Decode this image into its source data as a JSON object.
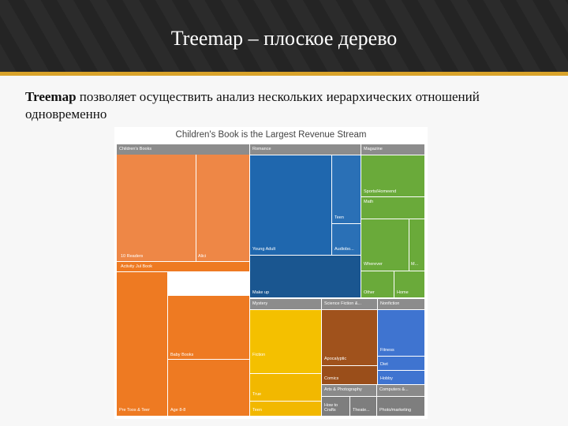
{
  "slide": {
    "title": "Treemap – плоское дерево",
    "text_bold": "Treemap",
    "text_rest": " позволяет осуществить анализ нескольких иерархических отношений одновременно"
  },
  "chart_data": {
    "type": "treemap",
    "title": "Children's Book is the Largest Revenue Stream",
    "groups": [
      {
        "name": "Children's Books",
        "color": "#ee7a22",
        "items": [
          "10 Readers",
          "Alici",
          "Baby Books",
          "Pre Toos & Teer",
          "Age 8-8"
        ],
        "sub_header": "Activity Jul Book"
      },
      {
        "name": "Romance",
        "color": "#1f5f9f",
        "items": [
          "Teen",
          "Young Adult",
          "Audiobo...",
          "Make up"
        ]
      },
      {
        "name": "Magazine",
        "color": "#6aaa3a",
        "items": [
          "Sports/Homeend",
          "Math",
          "Wherever",
          "M...",
          "Other",
          "Home"
        ]
      },
      {
        "name": "Mystery",
        "color": "#f2b800",
        "items": [
          "Fiction",
          "True",
          "Teen"
        ]
      },
      {
        "name": "Science Fiction &...",
        "color": "#a0521c",
        "items": [
          "Apocalyptic",
          "Comics"
        ]
      },
      {
        "name": "Nonfiction",
        "color": "#3f74d0",
        "items": [
          "Fitness",
          "Diet",
          "Hobby"
        ]
      },
      {
        "name": "Arts & Photography",
        "color": "#8a8a8a",
        "items": [
          "Computers &...",
          "How to Crafts",
          "Theate...",
          "Photo/marketing"
        ]
      }
    ]
  }
}
